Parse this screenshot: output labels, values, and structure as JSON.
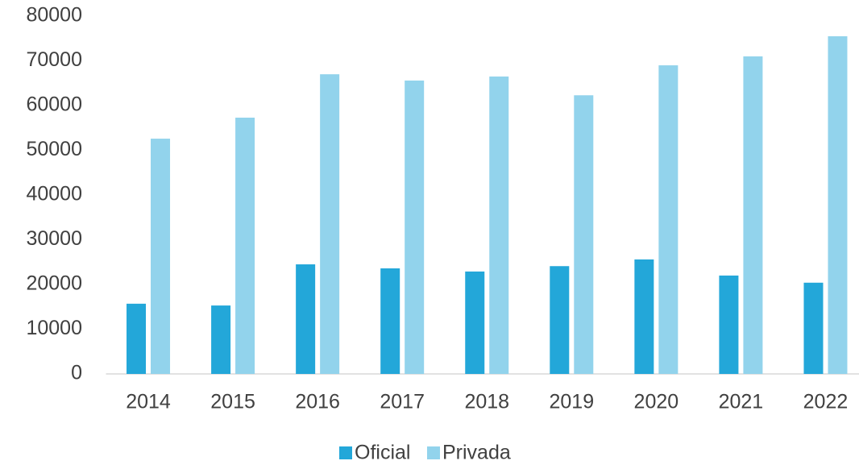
{
  "chart_data": {
    "type": "bar",
    "categories": [
      "2014",
      "2015",
      "2016",
      "2017",
      "2018",
      "2019",
      "2020",
      "2021",
      "2022"
    ],
    "series": [
      {
        "name": "Oficial",
        "color": "#23a7d9",
        "values": [
          15700,
          15300,
          24500,
          23600,
          22900,
          24100,
          25600,
          22000,
          20400
        ]
      },
      {
        "name": "Privada",
        "color": "#92d3ec",
        "values": [
          52600,
          57300,
          67000,
          65600,
          66500,
          62300,
          69000,
          71000,
          75500
        ]
      }
    ],
    "ylim": [
      0,
      80000
    ],
    "yticks": [
      0,
      10000,
      20000,
      30000,
      40000,
      50000,
      60000,
      70000,
      80000
    ],
    "grid": false,
    "legend": "bottom"
  }
}
